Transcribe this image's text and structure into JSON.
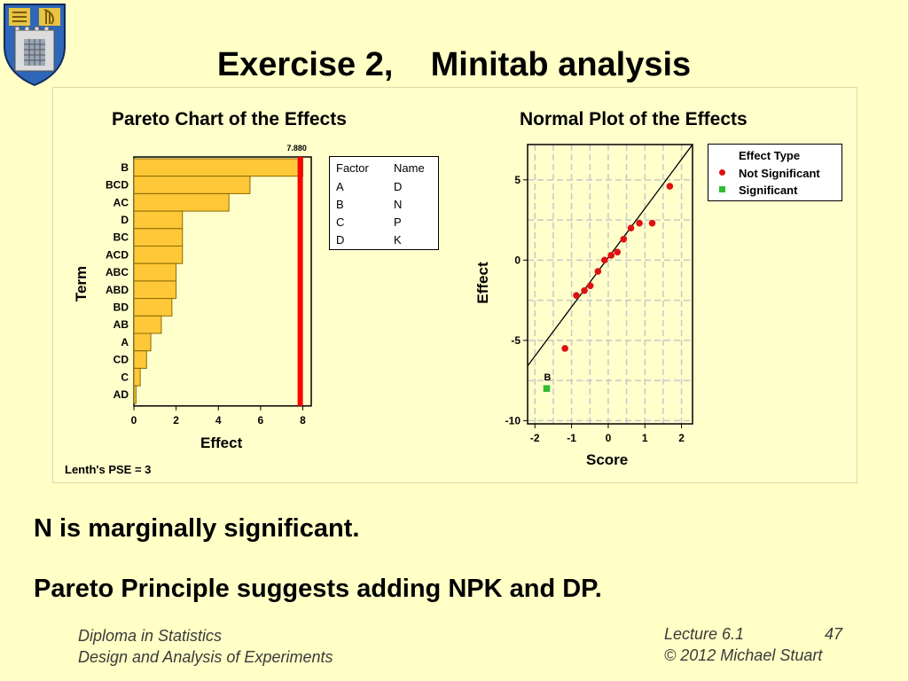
{
  "slide": {
    "title": "Exercise 2,    Minitab analysis",
    "statements": [
      "N is marginally significant.",
      "Pareto Principle suggests adding NPK and DP."
    ],
    "footer_left_1": "Diploma in Statistics",
    "footer_left_2": "Design and Analysis of Experiments",
    "footer_right_1": "Lecture 6.1",
    "footer_page": "47",
    "footer_right_2": "© 2012 Michael Stuart"
  },
  "colors": {
    "bar_fill": "#ffc838",
    "bar_stroke": "#8a6a00",
    "ref_line": "#ff0000",
    "not_significant": "#e01010",
    "significant": "#33bb33",
    "grid": "#c8c8c8",
    "background": "#ffffc6"
  },
  "chart_data": [
    {
      "type": "bar",
      "orientation": "horizontal",
      "title": "Pareto Chart of the Effects",
      "xlabel": "Effect",
      "ylabel": "Term",
      "categories": [
        "B",
        "BCD",
        "AC",
        "D",
        "BC",
        "ACD",
        "ABC",
        "ABD",
        "BD",
        "AB",
        "A",
        "CD",
        "C",
        "AD"
      ],
      "values": [
        8.0,
        5.5,
        4.5,
        2.3,
        2.3,
        2.3,
        2.0,
        2.0,
        1.8,
        1.3,
        0.8,
        0.6,
        0.3,
        0.1
      ],
      "xlim": [
        0,
        8.4
      ],
      "xticks": [
        "0",
        "2",
        "4",
        "6",
        "8"
      ],
      "reference_line": {
        "value": 7.88,
        "label": "7.880"
      },
      "note": "Lenth's PSE = 3",
      "factor_table": {
        "headers": [
          "Factor",
          "Name"
        ],
        "rows": [
          [
            "A",
            "D"
          ],
          [
            "B",
            "N"
          ],
          [
            "C",
            "P"
          ],
          [
            "D",
            "K"
          ]
        ]
      }
    },
    {
      "type": "scatter",
      "title": "Normal Plot of the Effects",
      "xlabel": "Score",
      "ylabel": "Effect",
      "xlim": [
        -2.2,
        2.3
      ],
      "ylim": [
        -10.2,
        7.2
      ],
      "xticks": [
        "-2",
        "-1",
        "0",
        "1",
        "2"
      ],
      "yticks": [
        "-10",
        "-5",
        "0",
        "5"
      ],
      "grid": true,
      "fit_line": [
        [
          -2.3,
          -6.9
        ],
        [
          2.3,
          7.2
        ]
      ],
      "legend": {
        "title": "Effect Type",
        "placement": "right",
        "entries": [
          "Not Significant",
          "Significant"
        ]
      },
      "series": [
        {
          "name": "Not Significant",
          "points": [
            [
              -1.18,
              -5.5
            ],
            [
              -0.87,
              -2.2
            ],
            [
              -0.65,
              -1.9
            ],
            [
              -0.49,
              -1.6
            ],
            [
              -0.28,
              -0.7
            ],
            [
              -0.1,
              0.0
            ],
            [
              0.08,
              0.3
            ],
            [
              0.25,
              0.5
            ],
            [
              0.42,
              1.3
            ],
            [
              0.62,
              2.0
            ],
            [
              0.85,
              2.3
            ],
            [
              1.2,
              2.3
            ],
            [
              1.68,
              4.6
            ]
          ]
        },
        {
          "name": "Significant",
          "points": [
            [
              -1.68,
              -8.0
            ]
          ],
          "labels": [
            "B"
          ]
        }
      ]
    }
  ]
}
